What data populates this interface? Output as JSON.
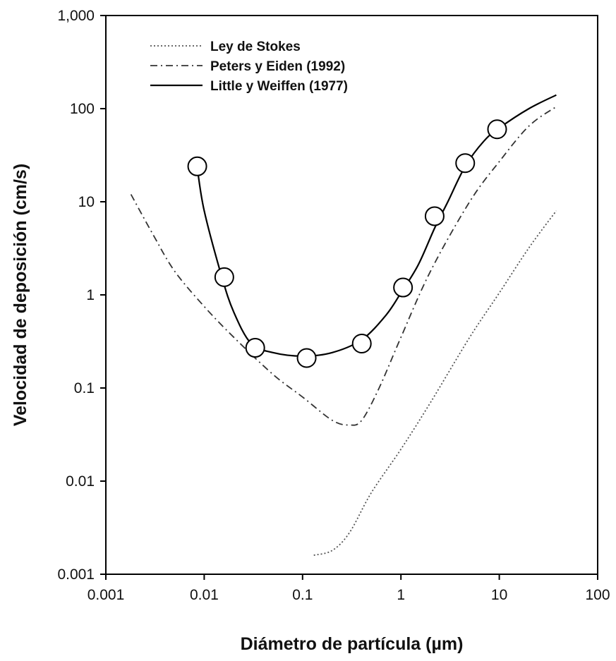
{
  "chart_data": {
    "type": "line",
    "xscale": "log",
    "yscale": "log",
    "xlim": [
      0.001,
      100
    ],
    "ylim": [
      0.001,
      1000
    ],
    "xlabel": "Diámetro de partícula (µm)",
    "ylabel": "Velocidad de deposición (cm/s)",
    "x_ticks": [
      0.001,
      0.01,
      0.1,
      1,
      10,
      100
    ],
    "x_tick_labels": [
      "0.001",
      "0.01",
      "0.1",
      "1",
      "10",
      "100"
    ],
    "y_ticks": [
      0.001,
      0.01,
      0.1,
      1,
      10,
      100,
      1000
    ],
    "y_tick_labels": [
      "0.001",
      "0.01",
      "0.1",
      "1",
      "10",
      "100",
      "1,000"
    ],
    "grid": false,
    "legend_position": "top-left",
    "series": [
      {
        "name": "Ley de Stokes",
        "style": "dotted",
        "color": "#555555",
        "points": [
          [
            0.13,
            0.0016
          ],
          [
            0.2,
            0.0018
          ],
          [
            0.3,
            0.0028
          ],
          [
            0.5,
            0.0075
          ],
          [
            1,
            0.022
          ],
          [
            2,
            0.07
          ],
          [
            5,
            0.35
          ],
          [
            10,
            1.05
          ],
          [
            20,
            3.2
          ],
          [
            38,
            8
          ]
        ]
      },
      {
        "name": "Peters y Eiden (1992)",
        "style": "dash-dot",
        "color": "#333333",
        "points": [
          [
            0.0018,
            12
          ],
          [
            0.003,
            4.5
          ],
          [
            0.005,
            1.8
          ],
          [
            0.01,
            0.75
          ],
          [
            0.02,
            0.35
          ],
          [
            0.05,
            0.14
          ],
          [
            0.1,
            0.08
          ],
          [
            0.2,
            0.045
          ],
          [
            0.3,
            0.04
          ],
          [
            0.4,
            0.045
          ],
          [
            0.6,
            0.1
          ],
          [
            1,
            0.35
          ],
          [
            2,
            1.8
          ],
          [
            5,
            10
          ],
          [
            10,
            27
          ],
          [
            20,
            65
          ],
          [
            38,
            105
          ]
        ]
      },
      {
        "name": "Little y Weiffen (1977)",
        "style": "solid",
        "color": "#000000",
        "points": [
          [
            0.0085,
            23
          ],
          [
            0.01,
            8
          ],
          [
            0.015,
            1.6
          ],
          [
            0.02,
            0.65
          ],
          [
            0.03,
            0.3
          ],
          [
            0.05,
            0.24
          ],
          [
            0.1,
            0.22
          ],
          [
            0.2,
            0.24
          ],
          [
            0.4,
            0.33
          ],
          [
            0.7,
            0.6
          ],
          [
            1,
            1.05
          ],
          [
            1.5,
            2.1
          ],
          [
            2.2,
            5.2
          ],
          [
            3,
            10
          ],
          [
            4.5,
            24
          ],
          [
            7,
            45
          ],
          [
            10,
            62
          ],
          [
            20,
            100
          ],
          [
            38,
            140
          ]
        ]
      },
      {
        "name": "",
        "kind": "markers",
        "style": "circle",
        "points": [
          [
            0.0085,
            24
          ],
          [
            0.016,
            1.55
          ],
          [
            0.033,
            0.27
          ],
          [
            0.11,
            0.21
          ],
          [
            0.4,
            0.3
          ],
          [
            1.05,
            1.2
          ],
          [
            2.2,
            7
          ],
          [
            4.5,
            26
          ],
          [
            9.5,
            60
          ]
        ]
      }
    ]
  }
}
